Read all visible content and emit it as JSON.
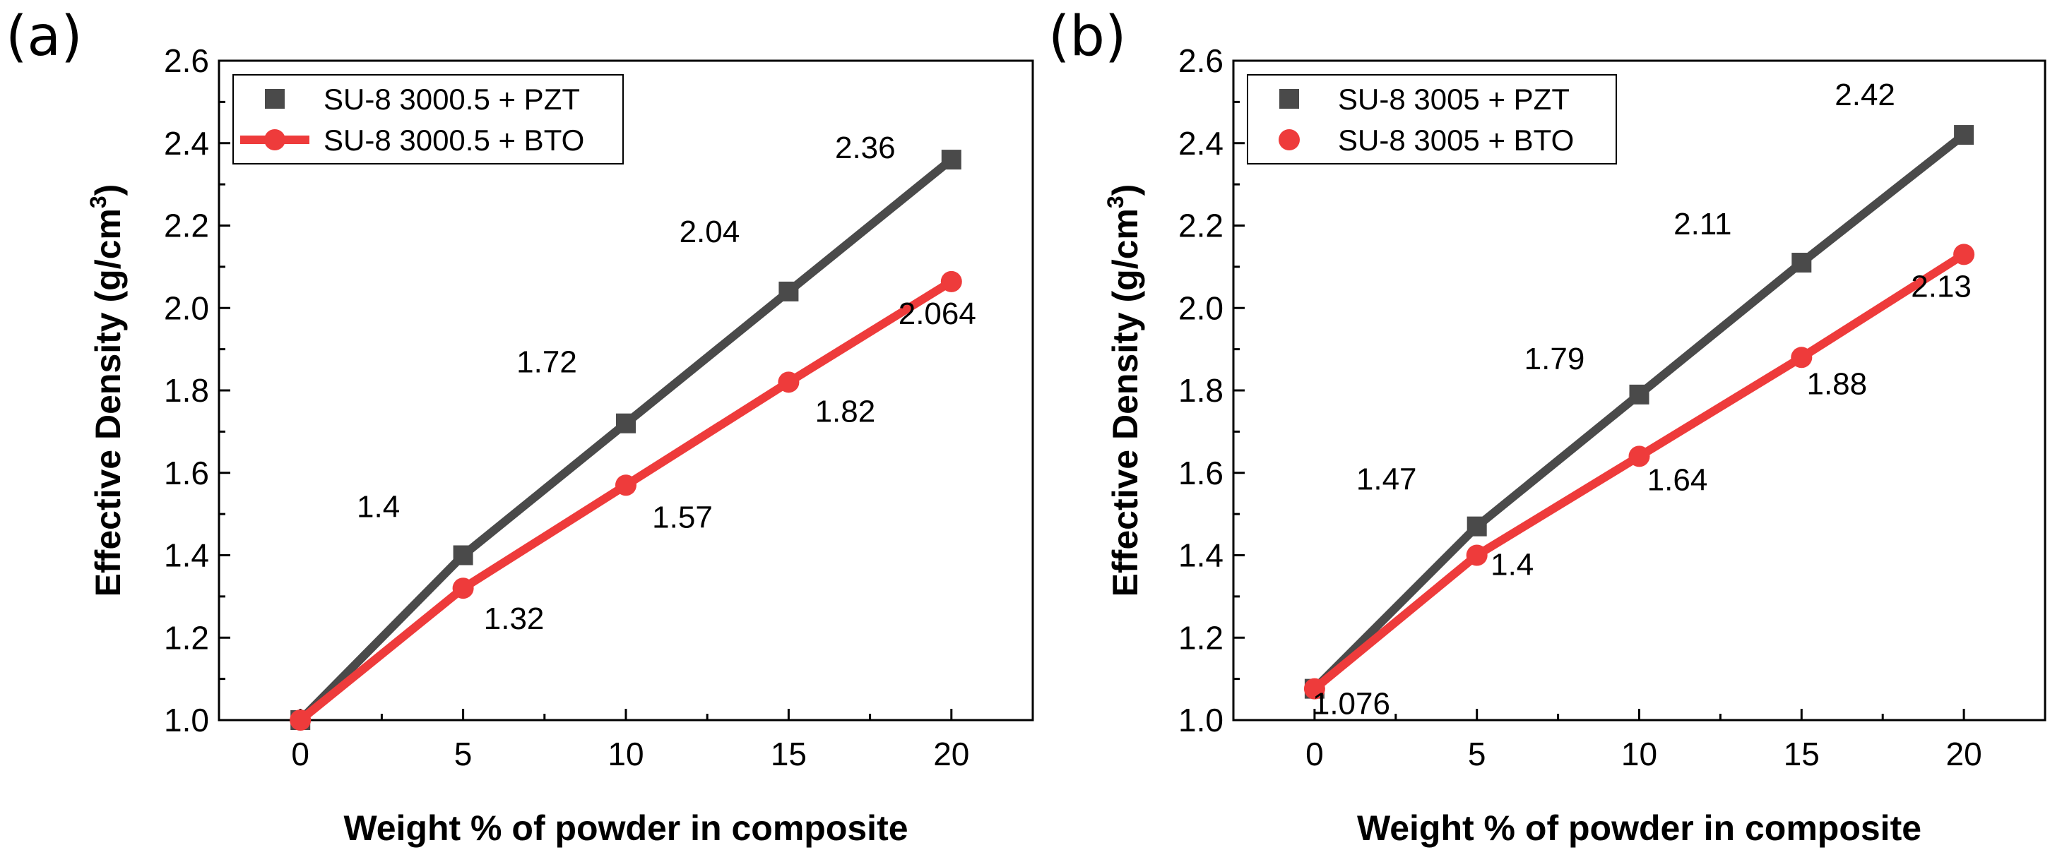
{
  "colors": {
    "pzt": "#4a4a4a",
    "bto": "#ee3b3b",
    "axis": "#000000",
    "background": "#ffffff"
  },
  "chart_data": [
    {
      "panel_label": "(a)",
      "type": "line",
      "xlabel": "Weight % of powder in composite",
      "ylabel_main": "Effective Density (g/cm",
      "ylabel_sup": "3",
      "ylabel_close": ")",
      "x": [
        0,
        5,
        10,
        15,
        20
      ],
      "xticks": [
        "0",
        "5",
        "10",
        "15",
        "20"
      ],
      "yticks": [
        "1.0",
        "1.2",
        "1.4",
        "1.6",
        "1.8",
        "2.0",
        "2.2",
        "2.4",
        "2.6"
      ],
      "xlim": [
        -2.5,
        22.5
      ],
      "ylim": [
        1.0,
        2.6
      ],
      "grid": false,
      "legend_position": "top-left",
      "series": [
        {
          "name": "SU-8 3000.5 + PZT",
          "marker": "square",
          "line": true,
          "color": "#4a4a4a",
          "values": [
            1.0,
            1.4,
            1.72,
            2.04,
            2.36
          ],
          "labels": [
            null,
            "1.4",
            "1.72",
            "2.04",
            "2.36"
          ]
        },
        {
          "name": "SU-8 3000.5 + BTO",
          "marker": "circle",
          "line": true,
          "color": "#ee3b3b",
          "values": [
            1.0,
            1.32,
            1.57,
            1.82,
            2.064
          ],
          "labels": [
            null,
            "1.32",
            "1.57",
            "1.82",
            "2.064"
          ]
        }
      ]
    },
    {
      "panel_label": "(b)",
      "type": "line",
      "xlabel": "Weight % of powder in composite",
      "ylabel_main": "Effective Density (g/cm",
      "ylabel_sup": "3",
      "ylabel_close": ")",
      "x": [
        0,
        5,
        10,
        15,
        20
      ],
      "xticks": [
        "0",
        "5",
        "10",
        "15",
        "20"
      ],
      "yticks": [
        "1.0",
        "1.2",
        "1.4",
        "1.6",
        "1.8",
        "2.0",
        "2.2",
        "2.4",
        "2.6"
      ],
      "xlim": [
        -2.5,
        22.5
      ],
      "ylim": [
        1.0,
        2.6
      ],
      "grid": false,
      "legend_position": "top-left",
      "series": [
        {
          "name": "SU-8 3005 + PZT",
          "marker": "square",
          "line": true,
          "color": "#4a4a4a",
          "values": [
            1.076,
            1.47,
            1.79,
            2.11,
            2.42
          ],
          "labels": [
            null,
            "1.47",
            "1.79",
            "2.11",
            "2.42"
          ]
        },
        {
          "name": "SU-8 3005 + BTO",
          "marker": "circle",
          "line": true,
          "color": "#ee3b3b",
          "values": [
            1.076,
            1.4,
            1.64,
            1.88,
            2.13
          ],
          "labels": [
            "1.076",
            "1.4",
            "1.64",
            "1.88",
            "2.13"
          ]
        }
      ]
    }
  ]
}
